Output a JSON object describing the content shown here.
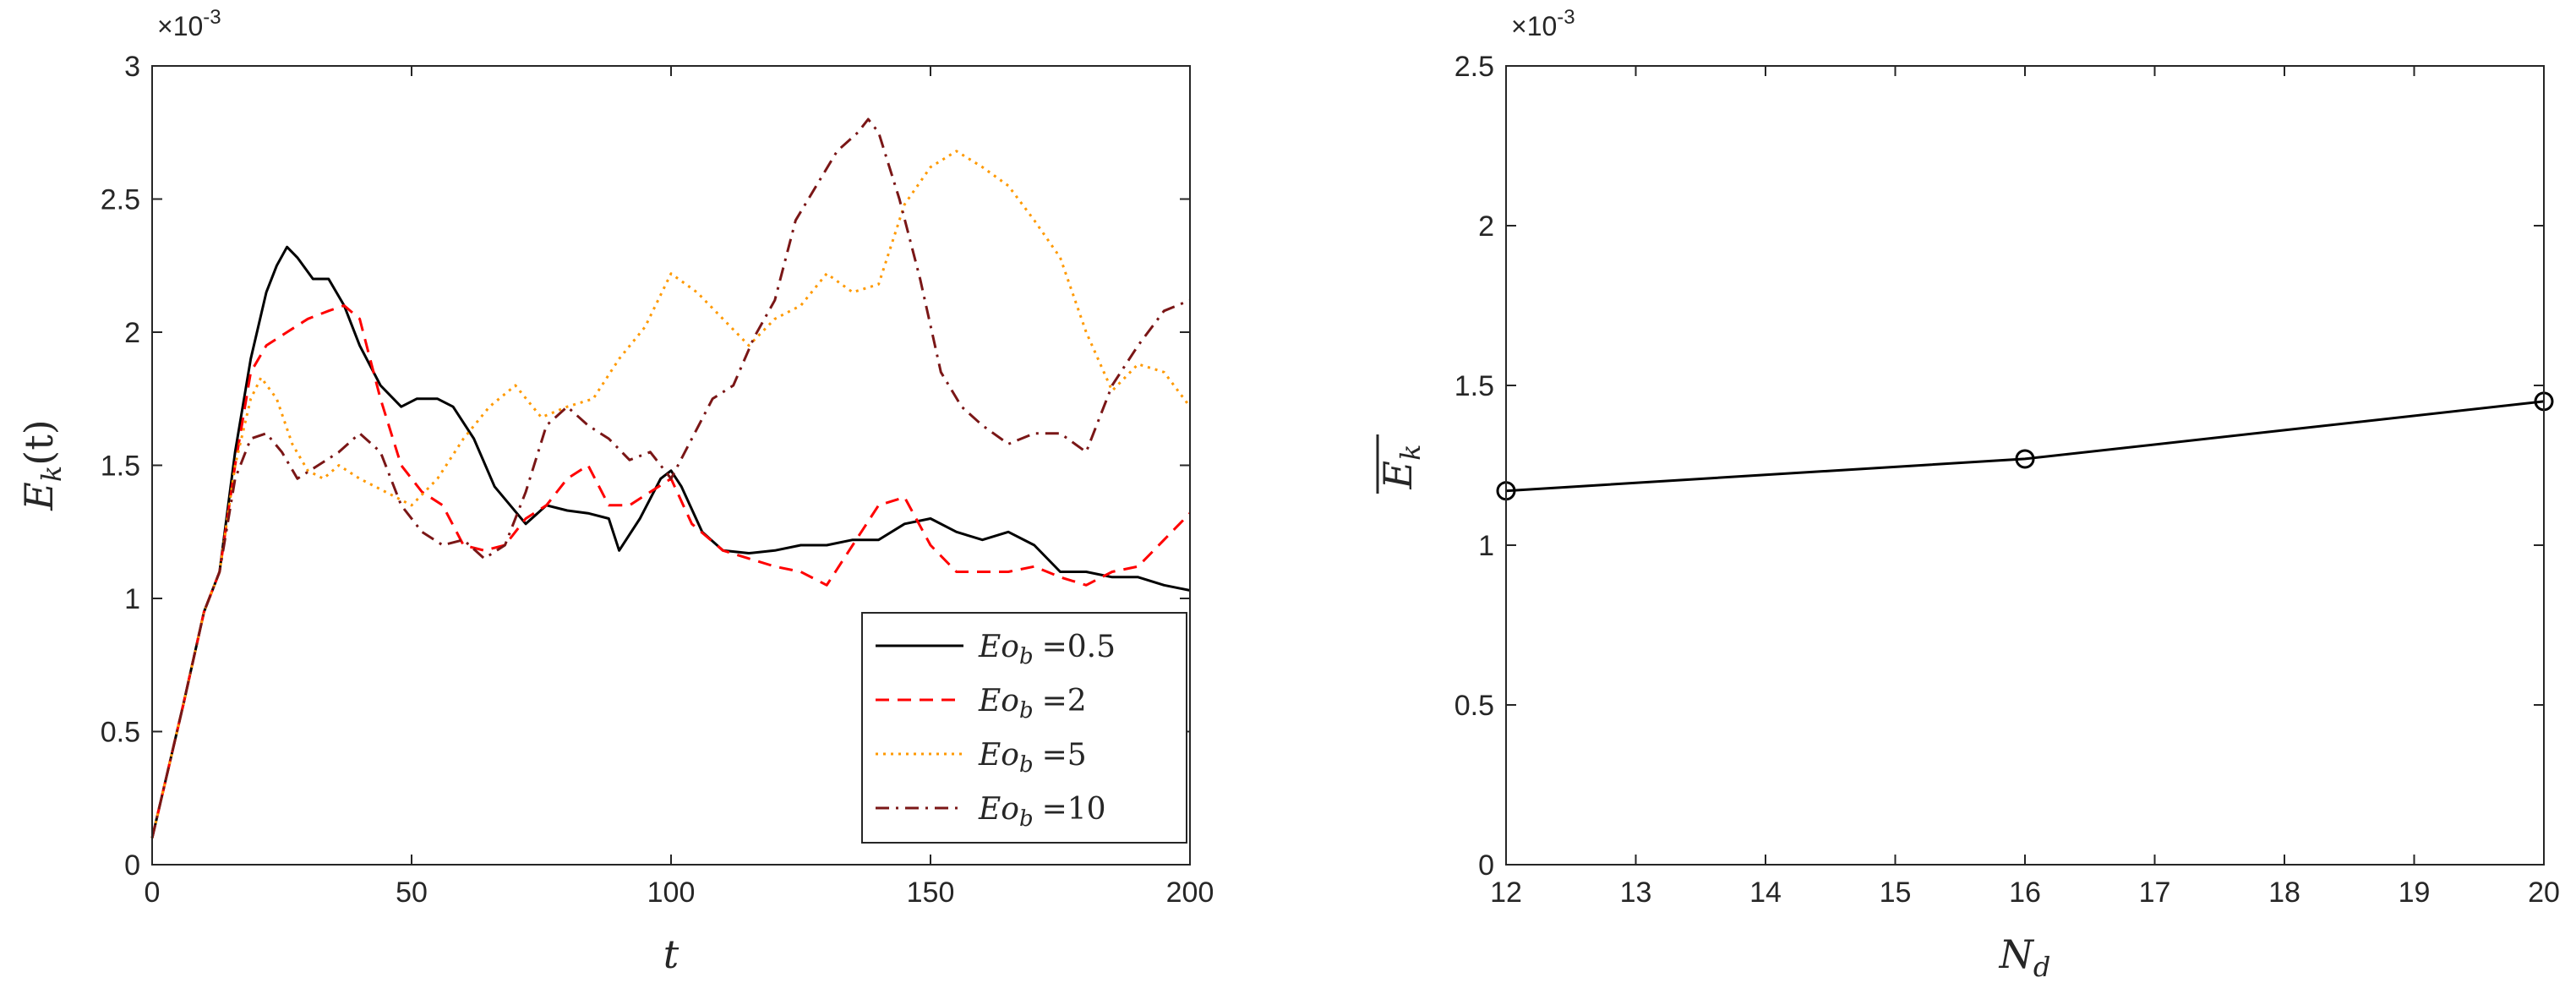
{
  "chart_data": [
    {
      "type": "line",
      "exponent_label": "×10",
      "exponent_power": "-3",
      "ylabel_base": "E",
      "ylabel_sub": "k",
      "ylabel_rest": "(t)",
      "xlabel": "t",
      "xlim": [
        0,
        200
      ],
      "ylim": [
        0,
        3
      ],
      "xticks": [
        "0",
        "50",
        "100",
        "150",
        "200"
      ],
      "yticks": [
        "0",
        "0.5",
        "1",
        "1.5",
        "2",
        "2.5",
        "3"
      ],
      "grid": false,
      "legend_location": "bottom-right",
      "series": [
        {
          "name": "Eo_b =0.5",
          "label_base": "Eo",
          "label_sub": "b",
          "label_value": "=0.5",
          "color": "#000000",
          "dash": "solid",
          "x": [
            0,
            3,
            6,
            10,
            13,
            16,
            19,
            22,
            24,
            26,
            28,
            31,
            34,
            37,
            40,
            44,
            48,
            51,
            55,
            58,
            62,
            66,
            69,
            72,
            76,
            80,
            84,
            88,
            90,
            94,
            98,
            100,
            102,
            106,
            110,
            115,
            120,
            125,
            130,
            135,
            140,
            145,
            150,
            155,
            160,
            165,
            170,
            175,
            180,
            185,
            190,
            195,
            200
          ],
          "values": [
            0.1,
            0.35,
            0.6,
            0.95,
            1.1,
            1.55,
            1.9,
            2.15,
            2.25,
            2.32,
            2.28,
            2.2,
            2.2,
            2.1,
            1.95,
            1.8,
            1.72,
            1.75,
            1.75,
            1.72,
            1.6,
            1.42,
            1.35,
            1.28,
            1.35,
            1.33,
            1.32,
            1.3,
            1.18,
            1.3,
            1.45,
            1.48,
            1.42,
            1.25,
            1.18,
            1.17,
            1.18,
            1.2,
            1.2,
            1.22,
            1.22,
            1.28,
            1.3,
            1.25,
            1.22,
            1.25,
            1.2,
            1.1,
            1.1,
            1.08,
            1.08,
            1.05,
            1.03
          ]
        },
        {
          "name": "Eo_b =2",
          "label_base": "Eo",
          "label_sub": "b",
          "label_value": "=2",
          "color": "#ff0000",
          "dash": "dashed",
          "x": [
            0,
            3,
            6,
            10,
            13,
            16,
            19,
            22,
            26,
            30,
            34,
            37,
            40,
            44,
            48,
            52,
            56,
            60,
            64,
            68,
            72,
            76,
            80,
            84,
            88,
            92,
            96,
            100,
            104,
            110,
            115,
            120,
            125,
            130,
            135,
            140,
            145,
            150,
            155,
            160,
            165,
            170,
            175,
            180,
            185,
            190,
            195,
            200
          ],
          "values": [
            0.1,
            0.35,
            0.6,
            0.95,
            1.1,
            1.5,
            1.85,
            1.95,
            2.0,
            2.05,
            2.08,
            2.1,
            2.05,
            1.75,
            1.5,
            1.4,
            1.35,
            1.2,
            1.18,
            1.2,
            1.3,
            1.35,
            1.45,
            1.5,
            1.35,
            1.35,
            1.4,
            1.45,
            1.28,
            1.18,
            1.15,
            1.12,
            1.1,
            1.05,
            1.2,
            1.35,
            1.38,
            1.2,
            1.1,
            1.1,
            1.1,
            1.12,
            1.08,
            1.05,
            1.1,
            1.12,
            1.22,
            1.32
          ]
        },
        {
          "name": "Eo_b =5",
          "label_base": "Eo",
          "label_sub": "b",
          "label_value": "=5",
          "color": "#ff9900",
          "dash": "dotted",
          "x": [
            0,
            3,
            6,
            10,
            13,
            16,
            19,
            21,
            24,
            27,
            30,
            33,
            36,
            40,
            45,
            50,
            55,
            60,
            65,
            70,
            75,
            80,
            85,
            90,
            95,
            100,
            105,
            110,
            115,
            120,
            125,
            130,
            135,
            140,
            145,
            150,
            155,
            160,
            165,
            170,
            175,
            180,
            185,
            190,
            195,
            200
          ],
          "values": [
            0.1,
            0.35,
            0.6,
            0.95,
            1.1,
            1.5,
            1.75,
            1.83,
            1.75,
            1.58,
            1.48,
            1.45,
            1.5,
            1.45,
            1.4,
            1.35,
            1.45,
            1.6,
            1.72,
            1.8,
            1.68,
            1.72,
            1.75,
            1.9,
            2.02,
            2.22,
            2.15,
            2.05,
            1.95,
            2.05,
            2.1,
            2.22,
            2.15,
            2.18,
            2.48,
            2.62,
            2.68,
            2.62,
            2.55,
            2.42,
            2.28,
            2.0,
            1.78,
            1.88,
            1.85,
            1.72
          ]
        },
        {
          "name": "Eo_b =10",
          "label_base": "Eo",
          "label_sub": "b",
          "label_value": "=10",
          "color": "#7a1616",
          "dash": "dashdot",
          "x": [
            0,
            3,
            6,
            10,
            13,
            16,
            19,
            22,
            25,
            28,
            32,
            36,
            40,
            44,
            48,
            52,
            56,
            60,
            64,
            68,
            72,
            76,
            80,
            84,
            88,
            92,
            96,
            100,
            104,
            108,
            112,
            116,
            120,
            124,
            128,
            132,
            136,
            138,
            140,
            144,
            148,
            152,
            156,
            160,
            165,
            170,
            175,
            180,
            185,
            190,
            195,
            200
          ],
          "values": [
            0.1,
            0.35,
            0.6,
            0.95,
            1.1,
            1.45,
            1.6,
            1.62,
            1.55,
            1.45,
            1.5,
            1.55,
            1.62,
            1.55,
            1.35,
            1.25,
            1.2,
            1.22,
            1.15,
            1.2,
            1.4,
            1.65,
            1.72,
            1.65,
            1.6,
            1.52,
            1.55,
            1.45,
            1.6,
            1.75,
            1.8,
            1.98,
            2.12,
            2.42,
            2.55,
            2.68,
            2.75,
            2.8,
            2.75,
            2.5,
            2.2,
            1.85,
            1.72,
            1.65,
            1.58,
            1.62,
            1.62,
            1.55,
            1.8,
            1.95,
            2.08,
            2.12
          ]
        }
      ]
    },
    {
      "type": "line",
      "exponent_label": "×10",
      "exponent_power": "-3",
      "ylabel_base": "E",
      "ylabel_sub": "k",
      "xlabel_base": "N",
      "xlabel_sub": "d",
      "xlim": [
        12,
        20
      ],
      "ylim": [
        0,
        2.5
      ],
      "xticks": [
        "12",
        "13",
        "14",
        "15",
        "16",
        "17",
        "18",
        "19",
        "20"
      ],
      "yticks": [
        "0",
        "0.5",
        "1",
        "1.5",
        "2",
        "2.5"
      ],
      "grid": false,
      "marker": "circle",
      "series": [
        {
          "name": "mean Ek",
          "color": "#000000",
          "x": [
            12,
            16,
            20
          ],
          "values": [
            1.17,
            1.27,
            1.45
          ]
        }
      ]
    }
  ]
}
